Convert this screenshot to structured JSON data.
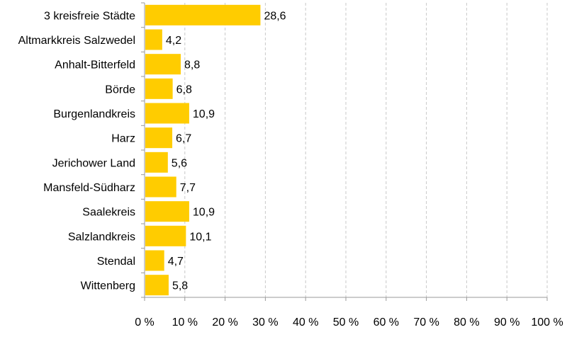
{
  "chart_data": {
    "type": "bar",
    "orientation": "horizontal",
    "categories": [
      "3 kreisfreie Städte",
      "Altmarkkreis Salzwedel",
      "Anhalt-Bitterfeld",
      "Börde",
      "Burgenlandkreis",
      "Harz",
      "Jerichower Land",
      "Mansfeld-Südharz",
      "Saalekreis",
      "Salzlandkreis",
      "Stendal",
      "Wittenberg"
    ],
    "values": [
      28.6,
      4.2,
      8.8,
      6.8,
      10.9,
      6.7,
      5.6,
      7.7,
      10.9,
      10.1,
      4.7,
      5.8
    ],
    "value_labels": [
      "28,6",
      "4,2",
      "8,8",
      "6,8",
      "10,9",
      "6,7",
      "5,6",
      "7,7",
      "10,9",
      "10,1",
      "4,7",
      "5,8"
    ],
    "title": "",
    "xlabel": "",
    "ylabel": "",
    "xlim": [
      0,
      100
    ],
    "x_ticks": [
      0,
      10,
      20,
      30,
      40,
      50,
      60,
      70,
      80,
      90,
      100
    ],
    "x_tick_labels": [
      "0 %",
      "10 %",
      "20 %",
      "30 %",
      "40 %",
      "50 %",
      "60 %",
      "70 %",
      "80 %",
      "90 %",
      "100 %"
    ],
    "grid": "vertical-dashed",
    "legend": "none",
    "bar_color": "#ffcc00"
  }
}
